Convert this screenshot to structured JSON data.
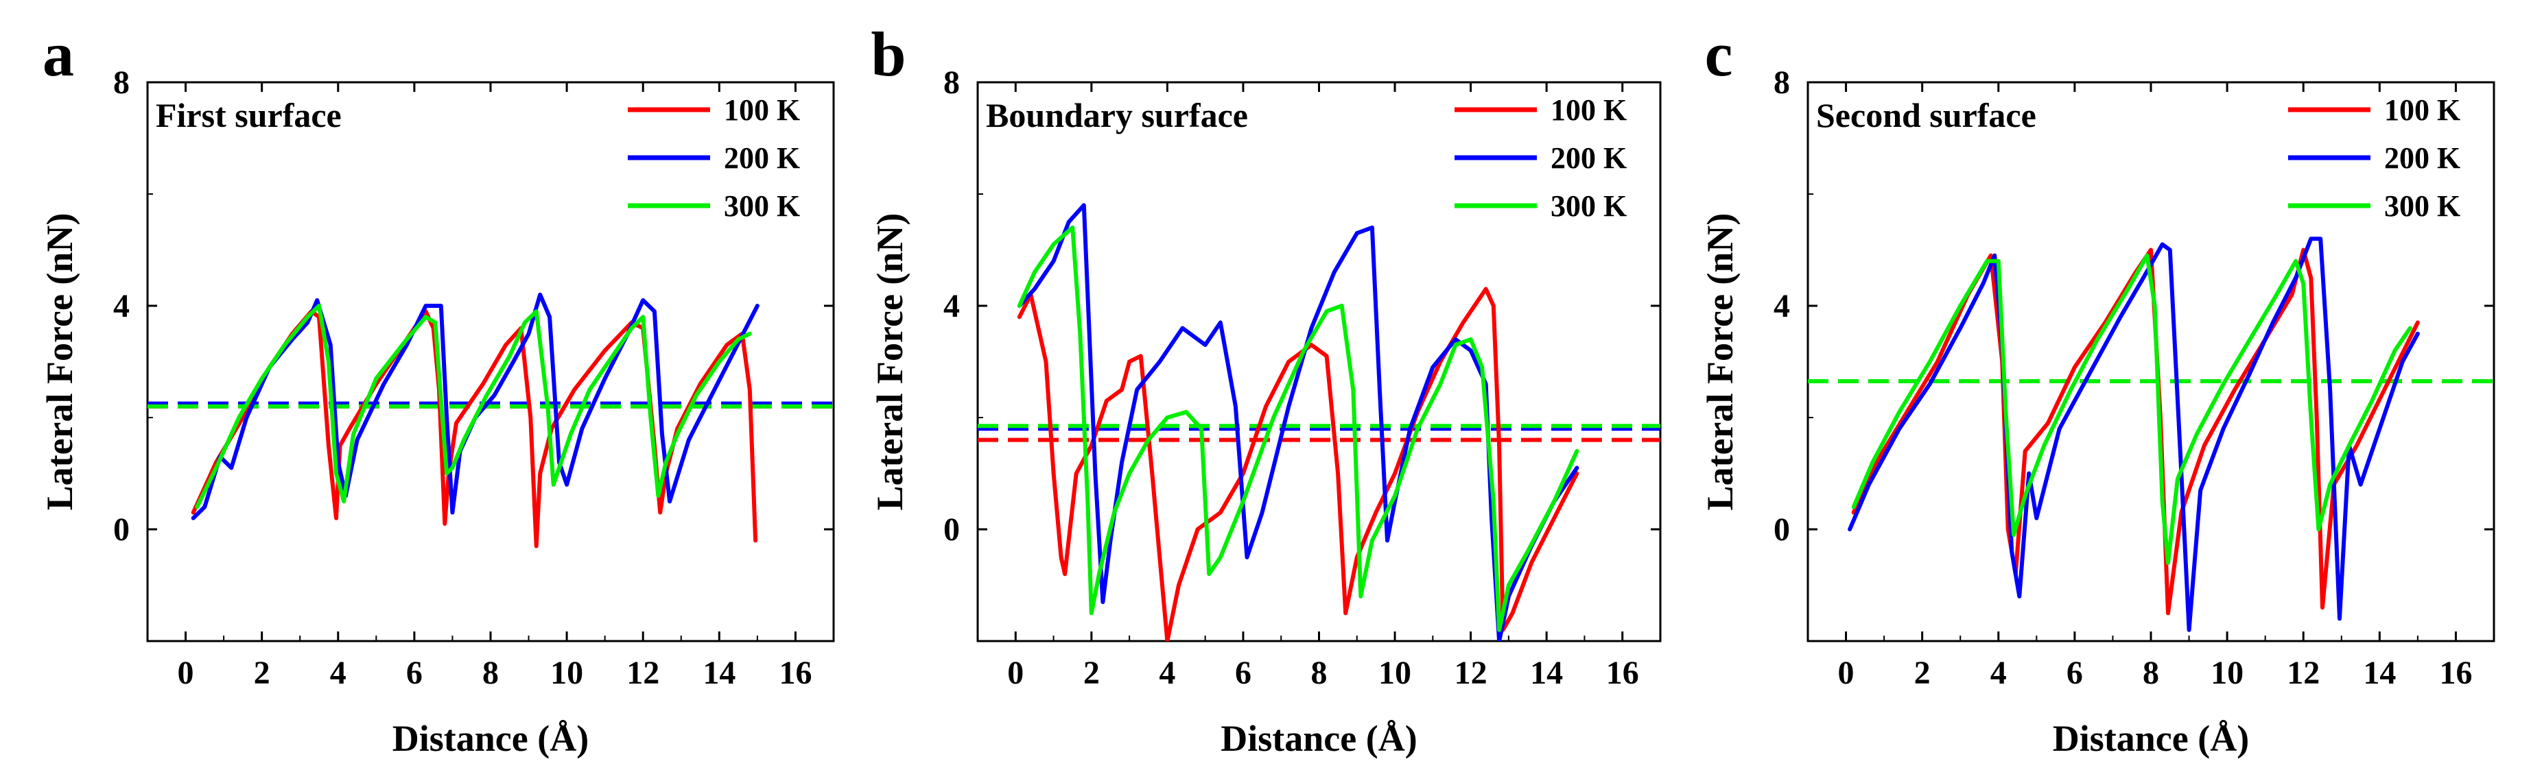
{
  "chart_data": [
    {
      "type": "line",
      "panel_letter": "a",
      "title": "First surface",
      "xlabel": "Distance (Å)",
      "ylabel": "Lateral Force (nN)",
      "xlim": [
        -1,
        17
      ],
      "ylim": [
        -2,
        8
      ],
      "x_ticks": [
        0,
        2,
        4,
        6,
        8,
        10,
        12,
        14,
        16
      ],
      "y_ticks": [
        0,
        4,
        8
      ],
      "legend_position": "top-right",
      "series": [
        {
          "name": "100 K",
          "color": "#ff0000",
          "mean": 2.2,
          "x": [
            0.2,
            0.8,
            1.5,
            2.2,
            2.8,
            3.3,
            3.5,
            3.75,
            3.95,
            4.05,
            4.3,
            5.0,
            5.8,
            6.3,
            6.5,
            6.65,
            6.8,
            6.9,
            7.1,
            7.8,
            8.4,
            8.8,
            9.05,
            9.2,
            9.3,
            9.6,
            10.2,
            11.0,
            11.7,
            12.0,
            12.3,
            12.45,
            12.6,
            12.9,
            13.5,
            14.2,
            14.6,
            14.8,
            14.95
          ],
          "y": [
            0.3,
            1.2,
            2.0,
            2.9,
            3.5,
            3.9,
            3.8,
            1.5,
            0.2,
            1.5,
            1.8,
            2.6,
            3.4,
            3.9,
            3.6,
            2.5,
            0.1,
            1.0,
            1.9,
            2.6,
            3.3,
            3.6,
            2.0,
            -0.3,
            1.0,
            1.8,
            2.5,
            3.2,
            3.7,
            3.6,
            1.5,
            0.3,
            1.0,
            1.8,
            2.6,
            3.3,
            3.5,
            2.5,
            -0.2
          ]
        },
        {
          "name": "200 K",
          "color": "#0000ff",
          "mean": 2.25,
          "x": [
            0.2,
            0.5,
            0.9,
            1.2,
            1.6,
            2.2,
            2.8,
            3.2,
            3.45,
            3.8,
            4.0,
            4.2,
            4.5,
            5.2,
            5.8,
            6.3,
            6.7,
            6.85,
            7.0,
            7.2,
            7.6,
            8.1,
            8.6,
            9.0,
            9.3,
            9.55,
            9.8,
            10.0,
            10.4,
            11.0,
            11.6,
            12.0,
            12.3,
            12.5,
            12.7,
            13.2,
            13.8,
            14.4,
            14.7,
            15.0
          ],
          "y": [
            0.2,
            0.4,
            1.3,
            1.1,
            2.0,
            2.9,
            3.4,
            3.7,
            4.1,
            3.3,
            1.2,
            0.6,
            1.6,
            2.6,
            3.3,
            4.0,
            4.0,
            2.0,
            0.3,
            1.4,
            2.0,
            2.4,
            3.0,
            3.5,
            4.2,
            3.8,
            1.2,
            0.8,
            1.8,
            2.7,
            3.5,
            4.1,
            3.9,
            1.7,
            0.5,
            1.6,
            2.4,
            3.2,
            3.6,
            4.0
          ]
        },
        {
          "name": "300 K",
          "color": "#00ee00",
          "mean": 2.2,
          "x": [
            0.3,
            0.8,
            1.4,
            2.0,
            2.6,
            3.2,
            3.5,
            3.75,
            3.95,
            4.15,
            4.4,
            5.0,
            5.8,
            6.3,
            6.55,
            6.7,
            6.85,
            7.0,
            7.3,
            7.9,
            8.5,
            8.9,
            9.2,
            9.5,
            9.65,
            9.8,
            10.1,
            10.6,
            11.2,
            11.7,
            12.0,
            12.2,
            12.4,
            12.6,
            12.9,
            13.4,
            14.0,
            14.5,
            14.8
          ],
          "y": [
            0.4,
            1.1,
            2.0,
            2.7,
            3.3,
            3.8,
            4.0,
            3.0,
            1.0,
            0.5,
            1.7,
            2.7,
            3.4,
            3.8,
            3.7,
            2.3,
            1.0,
            1.1,
            1.6,
            2.4,
            3.1,
            3.7,
            3.9,
            2.2,
            0.8,
            1.1,
            1.7,
            2.5,
            3.1,
            3.6,
            3.8,
            2.0,
            0.6,
            1.2,
            1.7,
            2.4,
            3.0,
            3.4,
            3.5
          ]
        }
      ]
    },
    {
      "type": "line",
      "panel_letter": "b",
      "title": "Boundary surface",
      "xlabel": "Distance (Å)",
      "ylabel": "Lateral Force (nN)",
      "xlim": [
        -1,
        17
      ],
      "ylim": [
        -2,
        8
      ],
      "x_ticks": [
        0,
        2,
        4,
        6,
        8,
        10,
        12,
        14,
        16
      ],
      "y_ticks": [
        0,
        4,
        8
      ],
      "legend_position": "top-right",
      "series": [
        {
          "name": "100 K",
          "color": "#ff0000",
          "mean": 1.6,
          "x": [
            0.1,
            0.4,
            0.8,
            1.0,
            1.2,
            1.3,
            1.6,
            2.0,
            2.4,
            2.8,
            3.0,
            3.3,
            3.6,
            3.8,
            4.0,
            4.3,
            4.8,
            5.4,
            6.0,
            6.6,
            7.2,
            7.8,
            8.2,
            8.5,
            8.7,
            9.0,
            9.5,
            10.0,
            10.6,
            11.2,
            11.8,
            12.4,
            12.6,
            12.75,
            12.85,
            13.1,
            13.6,
            14.2,
            14.8
          ],
          "y": [
            3.8,
            4.2,
            3.0,
            1.0,
            -0.5,
            -0.8,
            1.0,
            1.5,
            2.3,
            2.5,
            3.0,
            3.1,
            1.0,
            -0.5,
            -2.0,
            -1.0,
            0.0,
            0.3,
            1.0,
            2.2,
            3.0,
            3.3,
            3.1,
            1.0,
            -1.5,
            -0.5,
            0.3,
            1.0,
            2.1,
            3.0,
            3.7,
            4.3,
            4.0,
            1.5,
            -1.8,
            -1.5,
            -0.6,
            0.2,
            1.0
          ]
        },
        {
          "name": "200 K",
          "color": "#0000ff",
          "mean": 1.8,
          "x": [
            0.1,
            0.5,
            1.0,
            1.4,
            1.8,
            2.1,
            2.3,
            2.5,
            2.8,
            3.2,
            3.8,
            4.4,
            5.0,
            5.4,
            5.8,
            6.1,
            6.5,
            7.2,
            7.8,
            8.4,
            9.0,
            9.4,
            9.6,
            9.8,
            10.0,
            10.4,
            11.0,
            11.6,
            12.0,
            12.4,
            12.55,
            12.75,
            13.0,
            13.6,
            14.2,
            14.8
          ],
          "y": [
            4.0,
            4.3,
            4.8,
            5.5,
            5.8,
            1.0,
            -1.3,
            -0.2,
            1.2,
            2.5,
            3.0,
            3.6,
            3.3,
            3.7,
            2.2,
            -0.5,
            0.3,
            2.2,
            3.6,
            4.6,
            5.3,
            5.4,
            2.5,
            -0.2,
            0.5,
            1.8,
            2.9,
            3.4,
            3.2,
            2.6,
            0.2,
            -2.0,
            -1.2,
            -0.3,
            0.5,
            1.1
          ]
        },
        {
          "name": "300 K",
          "color": "#00ee00",
          "mean": 1.85,
          "x": [
            0.1,
            0.5,
            1.0,
            1.5,
            1.7,
            1.9,
            2.0,
            2.2,
            2.6,
            3.0,
            3.5,
            4.0,
            4.5,
            4.9,
            5.1,
            5.4,
            6.0,
            6.8,
            7.6,
            8.2,
            8.6,
            8.9,
            9.1,
            9.4,
            10.0,
            10.6,
            11.2,
            11.6,
            12.0,
            12.3,
            12.6,
            12.75,
            13.0,
            13.5,
            14.2,
            14.8
          ],
          "y": [
            4.0,
            4.6,
            5.1,
            5.4,
            3.5,
            0.5,
            -1.5,
            -0.8,
            0.3,
            1.0,
            1.6,
            2.0,
            2.1,
            1.8,
            -0.8,
            -0.5,
            0.5,
            2.0,
            3.2,
            3.9,
            4.0,
            2.5,
            -1.2,
            -0.2,
            0.6,
            1.8,
            2.6,
            3.3,
            3.4,
            2.9,
            0.5,
            -1.8,
            -1.0,
            -0.4,
            0.5,
            1.4
          ]
        }
      ]
    },
    {
      "type": "line",
      "panel_letter": "c",
      "title": "Second surface",
      "xlabel": "Distance (Å)",
      "ylabel": "Lateral Force (nN)",
      "xlim": [
        -1,
        17
      ],
      "ylim": [
        -2,
        8
      ],
      "x_ticks": [
        0,
        2,
        4,
        6,
        8,
        10,
        12,
        14,
        16
      ],
      "y_ticks": [
        0,
        4,
        8
      ],
      "legend_position": "top-right",
      "series": [
        {
          "name": "100 K",
          "color": "#ff0000",
          "mean": 2.65,
          "x": [
            0.2,
            0.8,
            1.6,
            2.4,
            3.2,
            3.8,
            4.1,
            4.25,
            4.45,
            4.7,
            5.3,
            6.0,
            6.8,
            7.6,
            8.0,
            8.25,
            8.45,
            8.8,
            9.4,
            10.2,
            11.0,
            11.7,
            12.0,
            12.2,
            12.35,
            12.5,
            12.8,
            13.4,
            14.2,
            15.0
          ],
          "y": [
            0.3,
            1.2,
            2.1,
            3.0,
            4.2,
            4.9,
            3.0,
            0.0,
            -0.8,
            1.4,
            1.9,
            2.9,
            3.7,
            4.6,
            5.0,
            2.0,
            -1.5,
            0.3,
            1.5,
            2.5,
            3.4,
            4.2,
            5.0,
            4.5,
            2.0,
            -1.4,
            0.8,
            1.5,
            2.6,
            3.7
          ]
        },
        {
          "name": "200 K",
          "color": "#0000ff",
          "mean": 2.65,
          "x": [
            0.1,
            0.6,
            1.4,
            2.2,
            3.0,
            3.6,
            3.9,
            4.1,
            4.35,
            4.55,
            4.8,
            5.0,
            5.6,
            6.4,
            7.2,
            7.8,
            8.3,
            8.5,
            8.8,
            9.0,
            9.3,
            9.9,
            10.6,
            11.2,
            11.8,
            12.2,
            12.45,
            12.7,
            12.95,
            13.2,
            13.5,
            14.1,
            14.6,
            15.0
          ],
          "y": [
            0.0,
            0.8,
            1.8,
            2.6,
            3.6,
            4.4,
            4.9,
            3.3,
            -0.4,
            -1.2,
            1.0,
            0.2,
            1.8,
            2.8,
            3.8,
            4.5,
            5.1,
            5.0,
            1.0,
            -1.8,
            0.7,
            1.8,
            2.8,
            3.7,
            4.5,
            5.2,
            5.2,
            2.5,
            -1.6,
            1.5,
            0.8,
            2.0,
            3.0,
            3.5
          ]
        },
        {
          "name": "300 K",
          "color": "#00ee00",
          "mean": 2.65,
          "x": [
            0.2,
            0.7,
            1.4,
            2.2,
            3.0,
            3.7,
            4.0,
            4.2,
            4.4,
            4.7,
            5.2,
            5.9,
            6.6,
            7.4,
            7.9,
            8.1,
            8.3,
            8.45,
            8.7,
            9.2,
            9.9,
            10.6,
            11.3,
            11.8,
            12.0,
            12.2,
            12.4,
            12.7,
            13.2,
            13.8,
            14.4,
            14.8
          ],
          "y": [
            0.4,
            1.2,
            2.1,
            3.0,
            4.0,
            4.8,
            4.8,
            2.0,
            -0.1,
            0.6,
            1.5,
            2.5,
            3.4,
            4.3,
            4.9,
            4.0,
            0.5,
            -0.6,
            0.9,
            1.7,
            2.6,
            3.4,
            4.2,
            4.8,
            4.4,
            2.0,
            0.0,
            0.8,
            1.5,
            2.3,
            3.2,
            3.6
          ]
        }
      ]
    }
  ]
}
